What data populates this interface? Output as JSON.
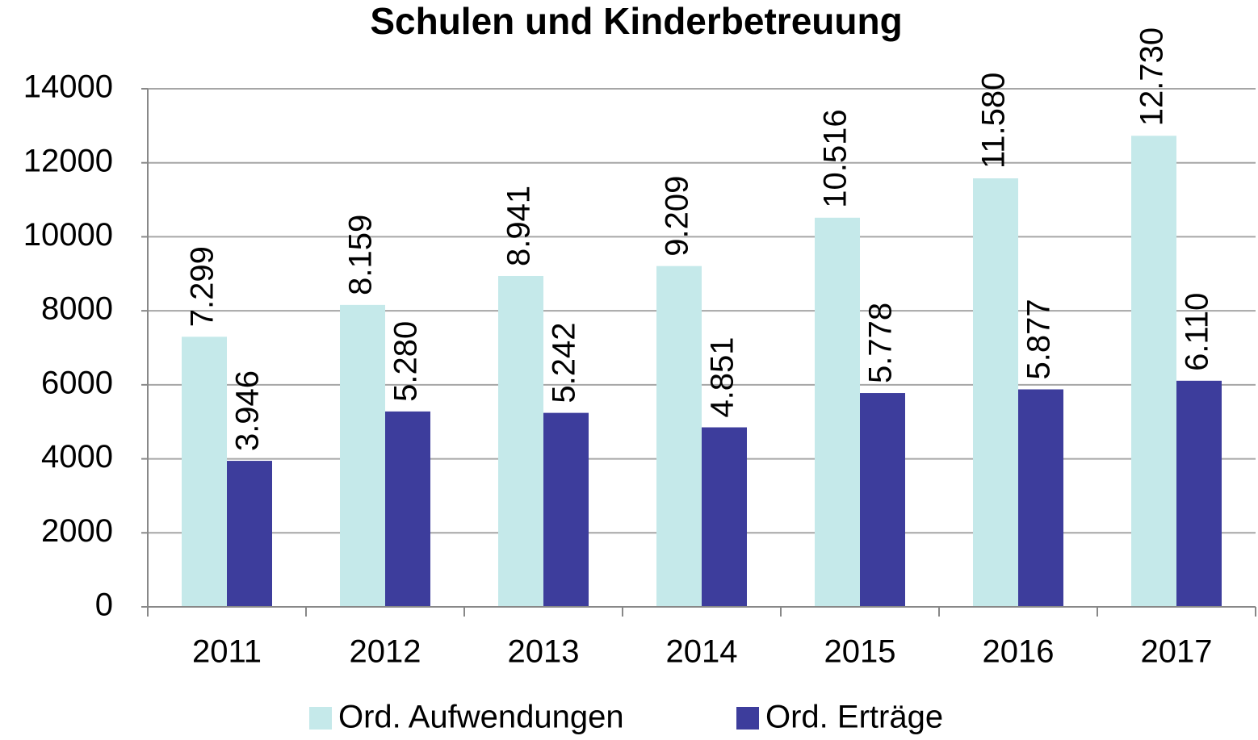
{
  "chart_data": {
    "type": "bar",
    "title": "Schulen und Kinderbetreuung",
    "categories": [
      "2011",
      "2012",
      "2013",
      "2014",
      "2015",
      "2016",
      "2017"
    ],
    "series": [
      {
        "name": "Ord. Aufwendungen",
        "color": "#c5e9ea",
        "values": [
          7299,
          8159,
          8941,
          9209,
          10516,
          11580,
          12730
        ],
        "value_labels": [
          "7.299",
          "8.159",
          "8.941",
          "9.209",
          "10.516",
          "11.580",
          "12.730"
        ]
      },
      {
        "name": "Ord. Erträge",
        "color": "#3d3d9c",
        "values": [
          3946,
          5280,
          5242,
          4851,
          5778,
          5877,
          6110
        ],
        "value_labels": [
          "3.946",
          "5.280",
          "5.242",
          "4.851",
          "5.778",
          "5.877",
          "6.110"
        ]
      }
    ],
    "ylim": [
      0,
      14000
    ],
    "yticks": [
      0,
      2000,
      4000,
      6000,
      8000,
      10000,
      12000,
      14000
    ],
    "grid": true,
    "legend": "bottom"
  }
}
